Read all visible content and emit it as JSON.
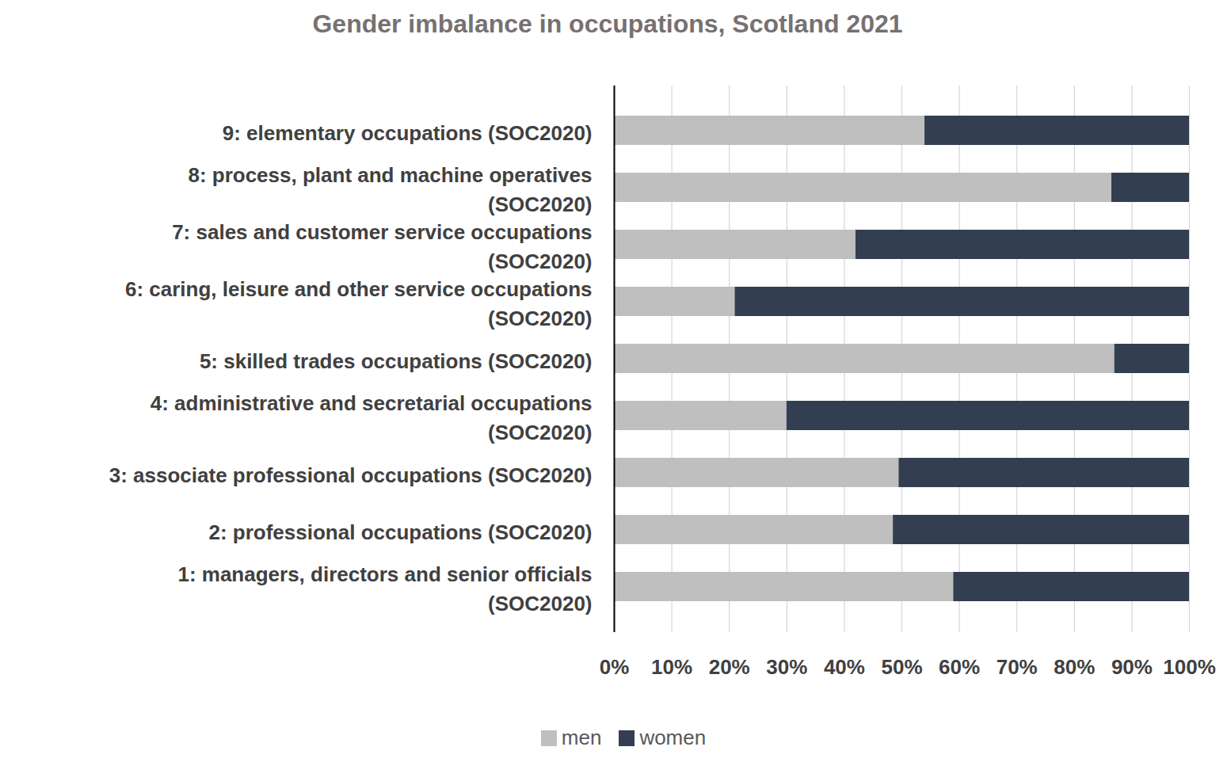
{
  "chart_data": {
    "type": "bar",
    "orientation": "horizontal",
    "stacked": true,
    "title": "Gender imbalance in occupations, Scotland 2021",
    "categories": [
      "9: elementary occupations (SOC2020)",
      "8: process, plant and machine operatives (SOC2020)",
      "7: sales and customer service occupations (SOC2020)",
      "6: caring, leisure and other service occupations (SOC2020)",
      "5: skilled trades occupations (SOC2020)",
      "4: administrative and secretarial occupations (SOC2020)",
      "3: associate professional occupations (SOC2020)",
      "2: professional occupations (SOC2020)",
      "1: managers, directors and senior officials (SOC2020)"
    ],
    "series": [
      {
        "name": "men",
        "color": "#bfbfbf",
        "values": [
          54,
          86.5,
          42,
          21,
          87,
          30,
          49.5,
          48.5,
          59
        ]
      },
      {
        "name": "women",
        "color": "#333f50",
        "values": [
          46,
          13.5,
          58,
          79,
          13,
          70,
          50.5,
          51.5,
          41
        ]
      }
    ],
    "xlim": [
      0,
      100
    ],
    "xticks": [
      {
        "value": 0,
        "label": "0%"
      },
      {
        "value": 10,
        "label": "10%"
      },
      {
        "value": 20,
        "label": "20%"
      },
      {
        "value": 30,
        "label": "30%"
      },
      {
        "value": 40,
        "label": "40%"
      },
      {
        "value": 50,
        "label": "50%"
      },
      {
        "value": 60,
        "label": "60%"
      },
      {
        "value": 70,
        "label": "70%"
      },
      {
        "value": 80,
        "label": "80%"
      },
      {
        "value": 90,
        "label": "90%"
      },
      {
        "value": 100,
        "label": "100%"
      }
    ],
    "grid": true,
    "legend": "bottom"
  }
}
